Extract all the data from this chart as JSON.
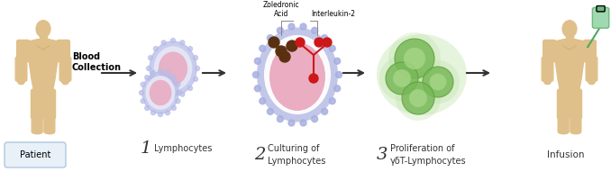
{
  "background_color": "#ffffff",
  "figsize": [
    6.78,
    1.91
  ],
  "dpi": 100,
  "patient_label": "Patient",
  "patient_box_color": "#e8f0f8",
  "patient_box_edge": "#b0c8e0",
  "steps": [
    {
      "number": "1",
      "label": "Lymphocytes"
    },
    {
      "number": "2",
      "label": "Culturing of\nLymphocytes"
    },
    {
      "number": "3",
      "label": "Proliferation of\nγδT-Lymphocytes"
    }
  ],
  "infusion_label": "Infusion",
  "blood_collection_label": "Blood\nCollection",
  "zoledronic_label": "Zoledronic\nAcid",
  "interleukin_label": "Interleukin-2",
  "skin_color": "#dfc08a",
  "skin_shadow": "#c9a870",
  "lymph_outer_color": "#b8bde8",
  "lymph_white_color": "#e8e8f5",
  "lymph_inner_color": "#e8a8c0",
  "big_cell_outer_color": "#a8b0e0",
  "big_cell_white_color": "#e8eaf8",
  "big_cell_inner_color": "#e8a0b8",
  "big_cell_spike_color": "#9898c8",
  "proliferation_outer_color": "#78b858",
  "proliferation_outer_edge": "#60a040",
  "proliferation_inner_color": "#a8d888",
  "proliferation_bg_color": "#b8e0a0",
  "arrow_color": "#333333",
  "zoledronic_dot_color": "#5a3010",
  "interleukin_dot_color": "#cc1818",
  "interleukin_stick_color": "#cc1818",
  "number_color": "#333333",
  "label_color": "#333333",
  "iv_bag_color": "#a0d8b0",
  "iv_bag_edge": "#70b880",
  "iv_tube_color": "#50a860"
}
